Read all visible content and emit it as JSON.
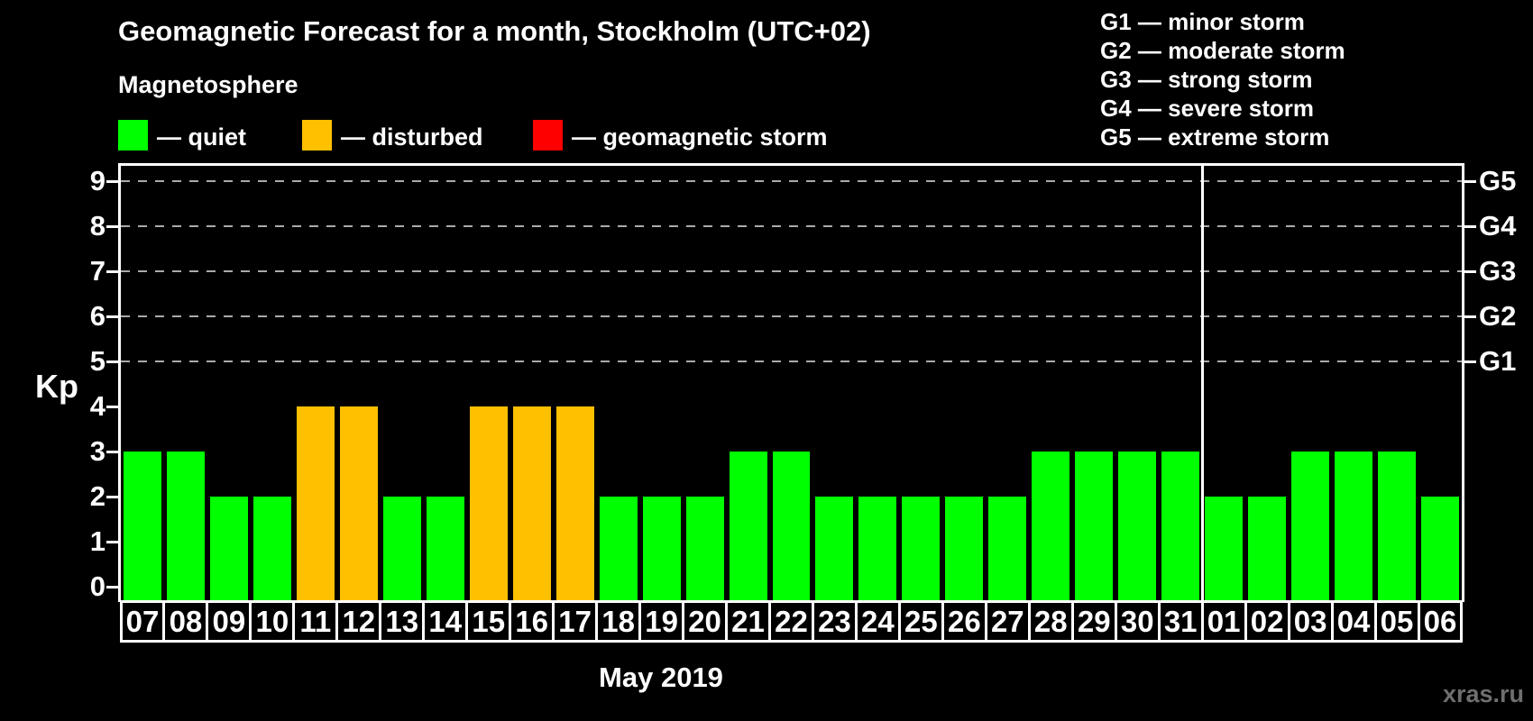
{
  "title": "Geomagnetic Forecast for a month, Stockholm (UTC+02)",
  "subtitle": "Magnetosphere",
  "legend": {
    "items": [
      {
        "name": "quiet",
        "color": "#00ff00",
        "label": "— quiet"
      },
      {
        "name": "disturbed",
        "color": "#ffc000",
        "label": "— disturbed"
      },
      {
        "name": "storm",
        "color": "#ff0000",
        "label": "— geomagnetic storm"
      }
    ]
  },
  "g_scale_legend": [
    "G1 — minor storm",
    "G2 — moderate storm",
    "G3 — strong storm",
    "G4 — severe storm",
    "G5 — extreme storm"
  ],
  "y_axis": {
    "label": "Kp",
    "ticks": [
      9,
      8,
      7,
      6,
      5,
      4,
      3,
      2,
      1,
      0
    ]
  },
  "right_axis": [
    {
      "label": "G5",
      "kp": 9
    },
    {
      "label": "G4",
      "kp": 8
    },
    {
      "label": "G3",
      "kp": 7
    },
    {
      "label": "G2",
      "kp": 6
    },
    {
      "label": "G1",
      "kp": 5
    }
  ],
  "x_axis_label": "May 2019",
  "watermark": "xras.ru",
  "colors": {
    "quiet": "#00ff00",
    "disturbed": "#ffc000",
    "storm": "#ff0000",
    "background": "#000000",
    "axis": "#ffffff",
    "grid": "#aaaaaa",
    "watermark": "#6f6f6f"
  },
  "chart_data": {
    "type": "bar",
    "title": "Geomagnetic Forecast for a month, Stockholm (UTC+02)",
    "categories": [
      "07",
      "08",
      "09",
      "10",
      "11",
      "12",
      "13",
      "14",
      "15",
      "16",
      "17",
      "18",
      "19",
      "20",
      "21",
      "22",
      "23",
      "24",
      "25",
      "26",
      "27",
      "28",
      "29",
      "30",
      "31",
      "01",
      "02",
      "03",
      "04",
      "05",
      "06"
    ],
    "values": [
      3,
      3,
      2,
      2,
      4,
      4,
      2,
      2,
      4,
      4,
      4,
      2,
      2,
      2,
      3,
      3,
      2,
      2,
      2,
      2,
      2,
      3,
      3,
      3,
      3,
      2,
      2,
      3,
      3,
      3,
      2
    ],
    "statuses": [
      "quiet",
      "quiet",
      "quiet",
      "quiet",
      "disturbed",
      "disturbed",
      "quiet",
      "quiet",
      "disturbed",
      "disturbed",
      "disturbed",
      "quiet",
      "quiet",
      "quiet",
      "quiet",
      "quiet",
      "quiet",
      "quiet",
      "quiet",
      "quiet",
      "quiet",
      "quiet",
      "quiet",
      "quiet",
      "quiet",
      "quiet",
      "quiet",
      "quiet",
      "quiet",
      "quiet",
      "quiet"
    ],
    "xlabel": "May 2019",
    "ylabel": "Kp",
    "ylim": [
      0,
      9.4
    ],
    "yticks": [
      0,
      1,
      2,
      3,
      4,
      5,
      6,
      7,
      8,
      9
    ],
    "gridlines_at_kp": [
      5,
      6,
      7,
      8,
      9
    ],
    "right_axis_labels": {
      "G1": 5,
      "G2": 6,
      "G3": 7,
      "G4": 8,
      "G5": 9
    },
    "month_separator_after_index": 24,
    "legend_position": "top-left",
    "grid": "dashed-horizontal-upper-only"
  }
}
